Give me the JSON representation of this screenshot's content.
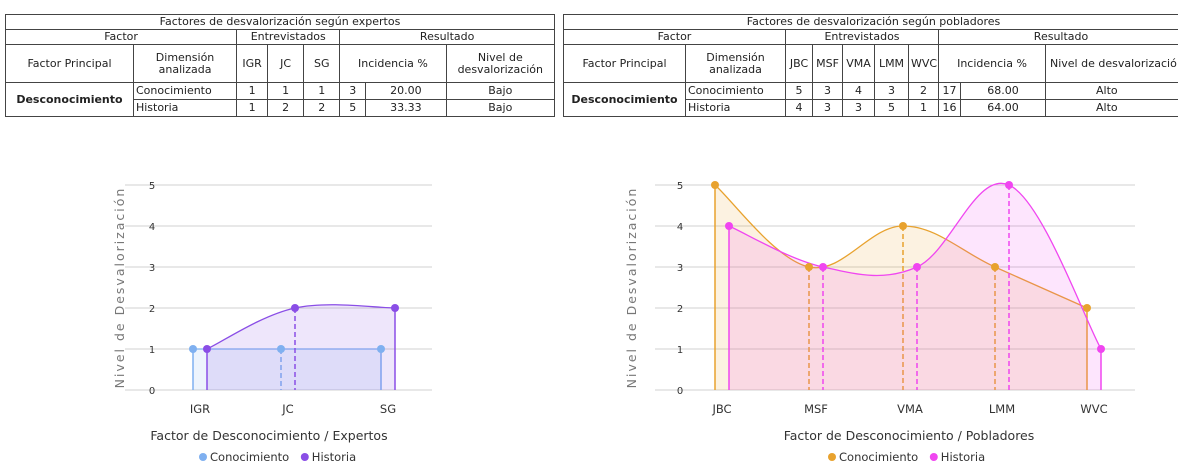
{
  "table_expertos": {
    "title": "Factores de desvalorización según expertos",
    "h_factor": "Factor",
    "h_entrevistados": "Entrevistados",
    "h_resultado": "Resultado",
    "h_factor_principal": "Factor Principal",
    "h_dimension": "Dimensión analizada",
    "cols": [
      "IGR",
      "JC",
      "SG"
    ],
    "h_incidencia": "Incidencia %",
    "h_nivel": "Nivel de desvalorización",
    "factor": "Desconocimiento",
    "rows": [
      {
        "dim": "Conocimiento",
        "vals": [
          "1",
          "1",
          "1"
        ],
        "count": "3",
        "pct": "20.00",
        "nivel": "Bajo"
      },
      {
        "dim": "Historia",
        "vals": [
          "1",
          "2",
          "2"
        ],
        "count": "5",
        "pct": "33.33",
        "nivel": "Bajo"
      }
    ]
  },
  "table_pobladores": {
    "title": "Factores de desvalorización según pobladores",
    "h_factor": "Factor",
    "h_entrevistados": "Entrevistados",
    "h_resultado": "Resultado",
    "h_factor_principal": "Factor Principal",
    "h_dimension": "Dimensión analizada",
    "cols": [
      "JBC",
      "MSF",
      "VMA",
      "LMM",
      "WVC"
    ],
    "h_incidencia": "Incidencia %",
    "h_nivel": "Nivel de desvalorizació",
    "factor": "Desconocimiento",
    "rows": [
      {
        "dim": "Conocimiento",
        "vals": [
          "5",
          "3",
          "4",
          "3",
          "2"
        ],
        "count": "17",
        "pct": "68.00",
        "nivel": "Alto"
      },
      {
        "dim": "Historia",
        "vals": [
          "4",
          "3",
          "3",
          "5",
          "1"
        ],
        "count": "16",
        "pct": "64.00",
        "nivel": "Alto"
      }
    ]
  },
  "chart_data": [
    {
      "type": "area",
      "categories": [
        "IGR",
        "JC",
        "SG"
      ],
      "series": [
        {
          "name": "Conocimiento",
          "values": [
            1,
            1,
            1
          ],
          "color": "#7fb0f0"
        },
        {
          "name": "Historia",
          "values": [
            1,
            2,
            2
          ],
          "color": "#8a4ee6"
        }
      ],
      "xlabel": "Factor de Desconocimiento / Expertos",
      "ylabel": "Nivel de Desvalorización",
      "ylim": [
        0,
        5
      ],
      "yticks": [
        "0",
        "1",
        "2",
        "3",
        "4",
        "5"
      ],
      "grid": true,
      "legend": "bottom"
    },
    {
      "type": "area",
      "categories": [
        "JBC",
        "MSF",
        "VMA",
        "LMM",
        "WVC"
      ],
      "series": [
        {
          "name": "Conocimiento",
          "values": [
            5,
            3,
            4,
            3,
            2
          ],
          "color": "#e8a22e"
        },
        {
          "name": "Historia",
          "values": [
            4,
            3,
            3,
            5,
            1
          ],
          "color": "#f046f0"
        }
      ],
      "xlabel": "Factor de Desconocimiento / Pobladores",
      "ylabel": "Nivel de Desvalorización",
      "ylim": [
        0,
        5
      ],
      "yticks": [
        "0",
        "1",
        "2",
        "3",
        "4",
        "5"
      ],
      "grid": true,
      "legend": "bottom"
    }
  ]
}
